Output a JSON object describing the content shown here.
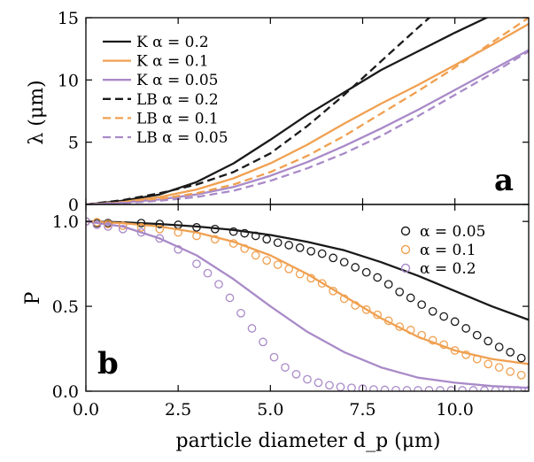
{
  "colors": {
    "black": "#1a1a1a",
    "orange": "#f0a050",
    "purple": "#a98ac8"
  },
  "x_tick_labels": [
    "0.0",
    "2.5",
    "5.0",
    "7.5",
    "10.0"
  ],
  "xlabel": "particle diameter d_p (μm)",
  "chart_data": [
    {
      "type": "line",
      "panel_label": "a",
      "ylabel": "λ (μm)",
      "xlim": [
        0,
        12
      ],
      "ylim": [
        0,
        15
      ],
      "yticks": [
        0,
        5,
        10,
        15
      ],
      "legend": "top-left",
      "grid": false,
      "series": [
        {
          "name": "K α = 0.2",
          "color": "black",
          "dash": false,
          "x": [
            0,
            1,
            2,
            3,
            4,
            5,
            6,
            7,
            8,
            9,
            10,
            11,
            12
          ],
          "y": [
            0,
            0.3,
            0.8,
            1.8,
            3.3,
            5.2,
            7.2,
            9.0,
            10.8,
            12.3,
            13.8,
            15.2,
            16.5
          ]
        },
        {
          "name": "K α = 0.1",
          "color": "orange",
          "dash": false,
          "x": [
            0,
            1,
            2,
            3,
            4,
            5,
            6,
            7,
            8,
            9,
            10,
            11,
            12
          ],
          "y": [
            0,
            0.2,
            0.6,
            1.2,
            2.1,
            3.3,
            4.8,
            6.5,
            8.1,
            9.6,
            11.2,
            12.8,
            14.5
          ]
        },
        {
          "name": "K α = 0.05",
          "color": "purple",
          "dash": false,
          "x": [
            0,
            1,
            2,
            3,
            4,
            5,
            6,
            7,
            8,
            9,
            10,
            11,
            12
          ],
          "y": [
            0,
            0.15,
            0.4,
            0.8,
            1.4,
            2.3,
            3.4,
            4.7,
            6.1,
            7.6,
            9.2,
            10.8,
            12.4
          ]
        },
        {
          "name": "LB α = 0.2",
          "color": "black",
          "dash": true,
          "x": [
            0,
            1,
            2,
            3,
            4,
            5,
            6,
            7,
            8,
            9,
            10
          ],
          "y": [
            0,
            0.35,
            0.9,
            1.6,
            2.6,
            4.1,
            6.3,
            8.8,
            11.5,
            14.2,
            16.8
          ]
        },
        {
          "name": "LB α = 0.1",
          "color": "orange",
          "dash": true,
          "x": [
            0,
            1,
            2,
            3,
            4,
            5,
            6,
            7,
            8,
            9,
            10,
            11,
            12
          ],
          "y": [
            0,
            0.15,
            0.45,
            0.9,
            1.6,
            2.6,
            3.9,
            5.5,
            7.3,
            9.1,
            11.0,
            13.0,
            15.0
          ]
        },
        {
          "name": "LB α = 0.05",
          "color": "purple",
          "dash": true,
          "x": [
            0,
            1,
            2,
            3,
            4,
            5,
            6,
            7,
            8,
            9,
            10,
            11,
            12
          ],
          "y": [
            0,
            0.1,
            0.3,
            0.6,
            1.1,
            1.9,
            2.9,
            4.1,
            5.5,
            7.1,
            8.8,
            10.5,
            12.3
          ]
        }
      ]
    },
    {
      "type": "line",
      "panel_label": "b",
      "ylabel": "P",
      "xlim": [
        0,
        12
      ],
      "ylim": [
        0,
        1.1
      ],
      "yticks": [
        0,
        0.5,
        1
      ],
      "ytick_labels": [
        "0.0",
        "0.5",
        "1.0"
      ],
      "legend": "top-right",
      "grid": false,
      "series": [
        {
          "name": "",
          "color": "black",
          "kind": "line",
          "x": [
            0,
            1,
            2,
            3,
            4,
            5,
            6,
            7,
            8,
            9,
            10,
            11,
            12
          ],
          "y": [
            1.0,
            0.995,
            0.985,
            0.97,
            0.95,
            0.92,
            0.88,
            0.83,
            0.76,
            0.68,
            0.59,
            0.5,
            0.42
          ]
        },
        {
          "name": "",
          "color": "orange",
          "kind": "line",
          "x": [
            0,
            1,
            2,
            3,
            4,
            5,
            6,
            7,
            8,
            9,
            10,
            11,
            12
          ],
          "y": [
            1.0,
            0.99,
            0.97,
            0.935,
            0.88,
            0.8,
            0.69,
            0.56,
            0.43,
            0.32,
            0.24,
            0.19,
            0.16
          ]
        },
        {
          "name": "",
          "color": "purple",
          "kind": "line",
          "x": [
            0,
            1,
            2,
            3,
            4,
            5,
            6,
            7,
            8,
            9,
            10,
            11,
            12
          ],
          "y": [
            1.0,
            0.97,
            0.9,
            0.8,
            0.66,
            0.5,
            0.35,
            0.23,
            0.14,
            0.08,
            0.05,
            0.03,
            0.02
          ]
        },
        {
          "name": "α = 0.05",
          "color": "black",
          "kind": "markers",
          "x": [
            0.0,
            0.3,
            0.6,
            1.5,
            2.0,
            2.5,
            3.0,
            3.5,
            4.0,
            4.3,
            4.6,
            4.9,
            5.2,
            5.5,
            5.8,
            6.1,
            6.4,
            6.7,
            7.0,
            7.3,
            7.6,
            7.9,
            8.2,
            8.5,
            8.8,
            9.1,
            9.4,
            9.7,
            10.0,
            10.3,
            10.6,
            10.9,
            11.2,
            11.5,
            11.8
          ],
          "y": [
            1.0,
            0.99,
            0.99,
            0.99,
            0.985,
            0.98,
            0.965,
            0.955,
            0.94,
            0.93,
            0.915,
            0.895,
            0.875,
            0.86,
            0.845,
            0.825,
            0.81,
            0.785,
            0.76,
            0.73,
            0.7,
            0.67,
            0.63,
            0.585,
            0.55,
            0.51,
            0.47,
            0.44,
            0.41,
            0.37,
            0.33,
            0.295,
            0.26,
            0.23,
            0.195
          ]
        },
        {
          "name": "α = 0.1",
          "color": "orange",
          "kind": "markers",
          "x": [
            0.0,
            0.3,
            0.6,
            1.0,
            1.5,
            2.0,
            2.5,
            3.0,
            3.5,
            4.0,
            4.3,
            4.6,
            4.9,
            5.2,
            5.5,
            5.8,
            6.1,
            6.4,
            6.7,
            7.0,
            7.3,
            7.6,
            7.9,
            8.2,
            8.5,
            8.8,
            9.1,
            9.4,
            9.7,
            10.0,
            10.3,
            10.6,
            10.9,
            11.2,
            11.5,
            11.8
          ],
          "y": [
            1.0,
            0.995,
            0.985,
            0.975,
            0.965,
            0.955,
            0.935,
            0.915,
            0.895,
            0.87,
            0.84,
            0.8,
            0.77,
            0.745,
            0.72,
            0.69,
            0.665,
            0.635,
            0.59,
            0.545,
            0.505,
            0.48,
            0.45,
            0.415,
            0.38,
            0.36,
            0.33,
            0.3,
            0.275,
            0.24,
            0.215,
            0.19,
            0.16,
            0.14,
            0.115,
            0.095
          ]
        },
        {
          "name": "α = 0.2",
          "color": "purple",
          "kind": "markers",
          "x": [
            0.0,
            0.3,
            0.6,
            1.0,
            1.5,
            2.0,
            2.5,
            3.0,
            3.3,
            3.6,
            3.9,
            4.2,
            4.5,
            4.8,
            5.1,
            5.4,
            5.7,
            6.0,
            6.3,
            6.6,
            6.9,
            7.2,
            7.5,
            7.8,
            8.1,
            8.4,
            8.7,
            9.0,
            9.3,
            9.6,
            9.9,
            10.2,
            10.5,
            10.8,
            11.1,
            11.4,
            11.7,
            12.0
          ],
          "y": [
            1.0,
            0.98,
            0.97,
            0.955,
            0.935,
            0.9,
            0.835,
            0.75,
            0.695,
            0.63,
            0.55,
            0.46,
            0.37,
            0.29,
            0.2,
            0.14,
            0.1,
            0.07,
            0.05,
            0.035,
            0.025,
            0.02,
            0.015,
            0.01,
            0.008,
            0.006,
            0.005,
            0.005,
            0.005,
            0.005,
            0.005,
            0.005,
            0.005,
            0.005,
            0.005,
            0.005,
            0.005,
            0.005
          ]
        }
      ]
    }
  ]
}
